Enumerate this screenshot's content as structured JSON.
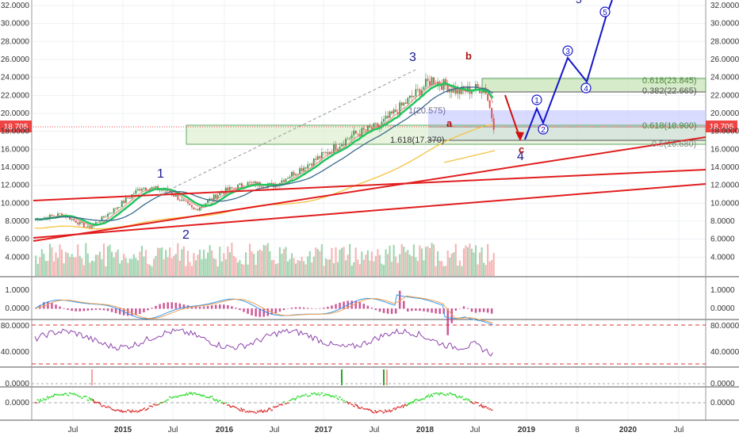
{
  "colors": {
    "bg": "#ffffff",
    "grid": "#eef0f4",
    "axis_text": "#333333",
    "up": "#3c9f4a",
    "down": "#d9534f",
    "ema_green": "#22c55e",
    "ema_pink": "#e67e7e",
    "sma_blue": "#3b6b8c",
    "sma_yellow": "#f5c242",
    "trend_red": "#e11d1d",
    "wave_blue": "#1515c8",
    "wave_red": "#d01010",
    "fib_green": "#cfe8c0",
    "fib_blue": "#c9ccff",
    "macd_blue": "#3399ee",
    "macd_orange": "#f0a050",
    "hist": "#c0307a",
    "rsi": "#8e44ad",
    "osc_up": "#33dd33",
    "osc_down": "#dd3333",
    "price_tag": "#ef4444",
    "volume_up": "#9fd6b0",
    "volume_down": "#f5b5b5"
  },
  "axes": {
    "price_ticks": [
      "32.0000",
      "30.0000",
      "28.0000",
      "26.0000",
      "24.0000",
      "22.0000",
      "20.0000",
      "18.0000",
      "16.0000",
      "14.0000",
      "12.0000",
      "10.0000",
      "8.0000",
      "6.0000",
      "4.0000"
    ],
    "price_tick_values": [
      32,
      30,
      28,
      26,
      24,
      22,
      20,
      18,
      16,
      14,
      12,
      10,
      8,
      6,
      4
    ],
    "time_ticks": [
      "Jul",
      "2015",
      "Jul",
      "2016",
      "Jul",
      "2017",
      "Jul",
      "2018",
      "Jul",
      "2019",
      "8",
      "2020",
      "Jul"
    ],
    "macd_ticks": [
      "1.0000",
      "0.0000"
    ],
    "macd_tick_values": [
      1,
      0
    ],
    "rsi_ticks": [
      "80.0000",
      "40.0000"
    ],
    "rsi_tick_values": [
      80,
      40
    ],
    "sig_ticks": [
      "0.0000"
    ],
    "osc_ticks": [
      "0.0000"
    ],
    "osc_tick_values": [
      0
    ],
    "current_price": "18.705"
  },
  "fib": {
    "fib_0618_top": "0.618(23.845)",
    "fib_0382_top": "0.382(22.665)",
    "fib_1_mid": "1(20.575)",
    "fib_0618_mid": "0.618(18.900)",
    "fib_1618": "1.618(17.370)",
    "fib_05_low": "0.5(16.680)"
  },
  "waves": {
    "w1": "1",
    "w2": "2",
    "w3": "3",
    "w4": "4",
    "w5": "5",
    "wa": "a",
    "wb": "b",
    "wc": "c",
    "s1": "1",
    "s2": "2",
    "s3": "3",
    "s4": "4",
    "s5": "5"
  },
  "chart_data": {
    "type": "line",
    "title": "",
    "xlabel": "",
    "ylabel": "",
    "x": [
      "2014-04",
      "2014-07",
      "2014-10",
      "2015-01",
      "2015-04",
      "2015-07",
      "2015-10",
      "2016-01",
      "2016-04",
      "2016-07",
      "2016-10",
      "2017-01",
      "2017-04",
      "2017-07",
      "2017-10",
      "2018-01",
      "2018-04",
      "2018-07",
      "2018-08"
    ],
    "series": [
      {
        "name": "",
        "values": [
          8.2,
          8.8,
          7.2,
          9.4,
          11.8,
          11.4,
          9.2,
          11.2,
          12.2,
          12.0,
          13.8,
          15.6,
          17.6,
          18.6,
          21.2,
          23.8,
          22.4,
          22.9,
          18.7
        ]
      }
    ],
    "ylim": [
      2.5,
      33
    ],
    "log_scale": false,
    "grid": true,
    "legend": "none"
  }
}
